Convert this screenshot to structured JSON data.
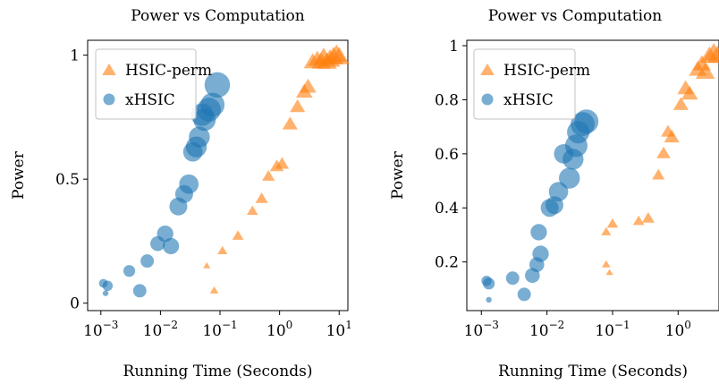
{
  "colors": {
    "hsic_perm": "#ff7f0e",
    "xhsic": "#1f77b4"
  },
  "chart_data": [
    {
      "type": "scatter",
      "title": "Power vs Computation",
      "xlabel": "Running Time (Seconds)",
      "ylabel": "Power",
      "xscale": "log",
      "xlim": [
        0.0006,
        14
      ],
      "ylim": [
        -0.03,
        1.06
      ],
      "xticks": [
        {
          "value": 0.001,
          "base": "10",
          "exp": "−3"
        },
        {
          "value": 0.01,
          "base": "10",
          "exp": "−2"
        },
        {
          "value": 0.1,
          "base": "10",
          "exp": "−1"
        },
        {
          "value": 1,
          "base": "10",
          "exp": "0"
        },
        {
          "value": 10,
          "base": "10",
          "exp": "1"
        }
      ],
      "yticks": [
        {
          "value": 0,
          "label": "0"
        },
        {
          "value": 0.5,
          "label": "0.5"
        },
        {
          "value": 1,
          "label": "1"
        }
      ],
      "legend": "top-left",
      "series": [
        {
          "name": "HSIC-perm",
          "marker": "triangle",
          "points": [
            {
              "x": 0.06,
              "y": 0.15,
              "s": 3
            },
            {
              "x": 0.08,
              "y": 0.05,
              "s": 4
            },
            {
              "x": 0.11,
              "y": 0.21,
              "s": 5
            },
            {
              "x": 0.2,
              "y": 0.27,
              "s": 6
            },
            {
              "x": 0.35,
              "y": 0.37,
              "s": 6
            },
            {
              "x": 0.5,
              "y": 0.42,
              "s": 7
            },
            {
              "x": 0.65,
              "y": 0.51,
              "s": 7
            },
            {
              "x": 0.9,
              "y": 0.55,
              "s": 8
            },
            {
              "x": 1.1,
              "y": 0.56,
              "s": 8
            },
            {
              "x": 1.5,
              "y": 0.72,
              "s": 9
            },
            {
              "x": 2.0,
              "y": 0.79,
              "s": 9
            },
            {
              "x": 2.6,
              "y": 0.85,
              "s": 10
            },
            {
              "x": 3.0,
              "y": 0.87,
              "s": 10
            },
            {
              "x": 3.6,
              "y": 0.97,
              "s": 11
            },
            {
              "x": 4.3,
              "y": 0.98,
              "s": 11
            },
            {
              "x": 5.0,
              "y": 0.97,
              "s": 12
            },
            {
              "x": 5.5,
              "y": 0.99,
              "s": 12
            },
            {
              "x": 6.3,
              "y": 0.97,
              "s": 12
            },
            {
              "x": 7.0,
              "y": 0.98,
              "s": 13
            },
            {
              "x": 8.0,
              "y": 0.99,
              "s": 13
            },
            {
              "x": 9.0,
              "y": 1.0,
              "s": 13
            },
            {
              "x": 10.0,
              "y": 0.99,
              "s": 13
            }
          ]
        },
        {
          "name": "xHSIC",
          "marker": "circle",
          "points": [
            {
              "x": 0.0012,
              "y": 0.04,
              "s": 2
            },
            {
              "x": 0.0011,
              "y": 0.08,
              "s": 4
            },
            {
              "x": 0.0013,
              "y": 0.07,
              "s": 5
            },
            {
              "x": 0.003,
              "y": 0.13,
              "s": 6
            },
            {
              "x": 0.0045,
              "y": 0.05,
              "s": 7
            },
            {
              "x": 0.006,
              "y": 0.17,
              "s": 7
            },
            {
              "x": 0.009,
              "y": 0.24,
              "s": 8
            },
            {
              "x": 0.012,
              "y": 0.28,
              "s": 9
            },
            {
              "x": 0.015,
              "y": 0.23,
              "s": 9
            },
            {
              "x": 0.02,
              "y": 0.39,
              "s": 10
            },
            {
              "x": 0.025,
              "y": 0.44,
              "s": 10
            },
            {
              "x": 0.03,
              "y": 0.48,
              "s": 11
            },
            {
              "x": 0.035,
              "y": 0.61,
              "s": 11
            },
            {
              "x": 0.04,
              "y": 0.63,
              "s": 12
            },
            {
              "x": 0.045,
              "y": 0.67,
              "s": 12
            },
            {
              "x": 0.05,
              "y": 0.76,
              "s": 13
            },
            {
              "x": 0.055,
              "y": 0.74,
              "s": 13
            },
            {
              "x": 0.065,
              "y": 0.78,
              "s": 14
            },
            {
              "x": 0.075,
              "y": 0.8,
              "s": 14
            },
            {
              "x": 0.09,
              "y": 0.88,
              "s": 15
            }
          ]
        }
      ]
    },
    {
      "type": "scatter",
      "title": "Power vs Computation",
      "xlabel": "Running Time (Seconds)",
      "ylabel": "Power",
      "xscale": "log",
      "xlim": [
        0.0006,
        4.2
      ],
      "ylim": [
        0.02,
        1.02
      ],
      "xticks": [
        {
          "value": 0.001,
          "base": "10",
          "exp": "−3"
        },
        {
          "value": 0.01,
          "base": "10",
          "exp": "−2"
        },
        {
          "value": 0.1,
          "base": "10",
          "exp": "−1"
        },
        {
          "value": 1,
          "base": "10",
          "exp": "0"
        }
      ],
      "yticks": [
        {
          "value": 0.2,
          "label": "0.2"
        },
        {
          "value": 0.4,
          "label": "0.4"
        },
        {
          "value": 0.6,
          "label": "0.6"
        },
        {
          "value": 0.8,
          "label": "0.8"
        },
        {
          "value": 1,
          "label": "1"
        }
      ],
      "legend": "top-left",
      "series": [
        {
          "name": "HSIC-perm",
          "marker": "triangle",
          "points": [
            {
              "x": 0.08,
              "y": 0.19,
              "s": 4
            },
            {
              "x": 0.09,
              "y": 0.16,
              "s": 3
            },
            {
              "x": 0.08,
              "y": 0.31,
              "s": 5
            },
            {
              "x": 0.1,
              "y": 0.34,
              "s": 6
            },
            {
              "x": 0.25,
              "y": 0.35,
              "s": 6
            },
            {
              "x": 0.35,
              "y": 0.36,
              "s": 7
            },
            {
              "x": 0.5,
              "y": 0.52,
              "s": 7
            },
            {
              "x": 0.6,
              "y": 0.6,
              "s": 8
            },
            {
              "x": 0.7,
              "y": 0.68,
              "s": 8
            },
            {
              "x": 0.8,
              "y": 0.66,
              "s": 9
            },
            {
              "x": 1.1,
              "y": 0.78,
              "s": 9
            },
            {
              "x": 1.3,
              "y": 0.84,
              "s": 10
            },
            {
              "x": 1.5,
              "y": 0.82,
              "s": 10
            },
            {
              "x": 2.0,
              "y": 0.91,
              "s": 11
            },
            {
              "x": 2.3,
              "y": 0.93,
              "s": 11
            },
            {
              "x": 2.6,
              "y": 0.9,
              "s": 12
            },
            {
              "x": 3.0,
              "y": 0.96,
              "s": 12
            },
            {
              "x": 3.5,
              "y": 0.97,
              "s": 13
            },
            {
              "x": 4.0,
              "y": 0.96,
              "s": 13
            }
          ]
        },
        {
          "name": "xHSIC",
          "marker": "circle",
          "points": [
            {
              "x": 0.0013,
              "y": 0.06,
              "s": 2
            },
            {
              "x": 0.0012,
              "y": 0.13,
              "s": 5
            },
            {
              "x": 0.0013,
              "y": 0.12,
              "s": 6
            },
            {
              "x": 0.003,
              "y": 0.14,
              "s": 7
            },
            {
              "x": 0.0045,
              "y": 0.08,
              "s": 7
            },
            {
              "x": 0.006,
              "y": 0.15,
              "s": 8
            },
            {
              "x": 0.007,
              "y": 0.19,
              "s": 8
            },
            {
              "x": 0.008,
              "y": 0.23,
              "s": 9
            },
            {
              "x": 0.0075,
              "y": 0.31,
              "s": 9
            },
            {
              "x": 0.011,
              "y": 0.4,
              "s": 10
            },
            {
              "x": 0.013,
              "y": 0.41,
              "s": 10
            },
            {
              "x": 0.015,
              "y": 0.46,
              "s": 11
            },
            {
              "x": 0.018,
              "y": 0.6,
              "s": 11
            },
            {
              "x": 0.022,
              "y": 0.51,
              "s": 12
            },
            {
              "x": 0.025,
              "y": 0.58,
              "s": 12
            },
            {
              "x": 0.028,
              "y": 0.63,
              "s": 13
            },
            {
              "x": 0.03,
              "y": 0.68,
              "s": 13
            },
            {
              "x": 0.035,
              "y": 0.71,
              "s": 14
            },
            {
              "x": 0.04,
              "y": 0.72,
              "s": 14
            }
          ]
        }
      ]
    }
  ]
}
